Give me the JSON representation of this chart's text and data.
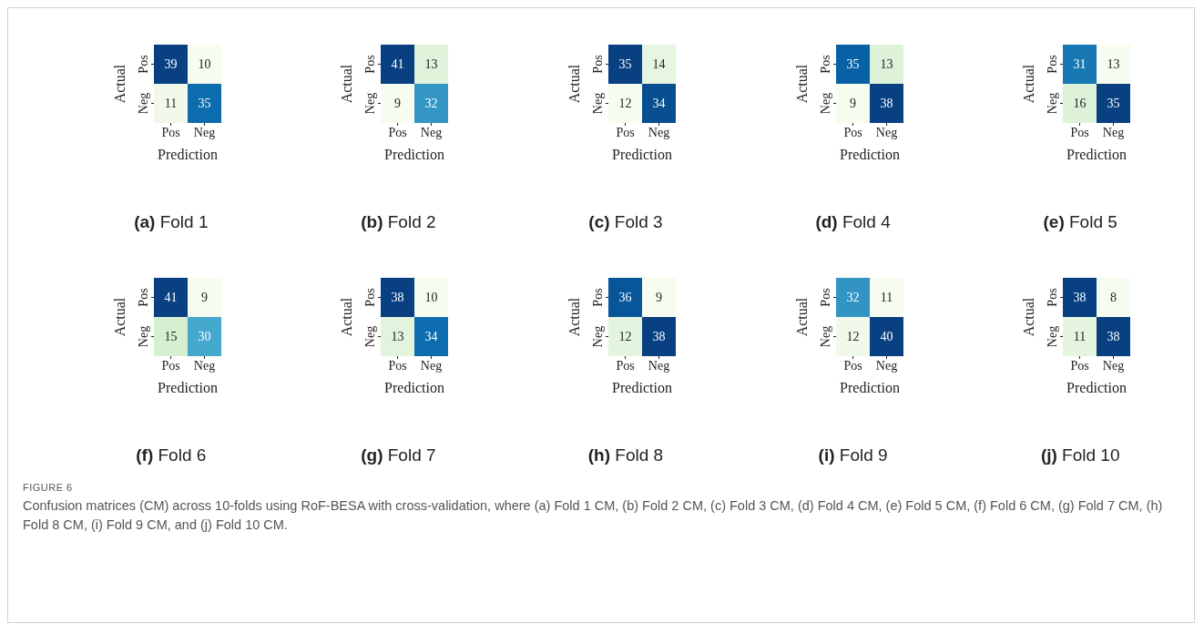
{
  "chart_data": [
    {
      "type": "heatmap",
      "title": "(a) Fold 1",
      "xlabel": "Prediction",
      "ylabel": "Actual",
      "categories": [
        "Pos",
        "Neg"
      ],
      "y_categories": [
        "Pos",
        "Neg"
      ],
      "cells": [
        [
          39,
          10
        ],
        [
          11,
          35
        ]
      ],
      "data_labels": true,
      "annotations": [
        "FIGURE 6",
        "Confusion matrices (CM) across 10-folds using RoF-BESA with cross-validation, where (a) Fold 1 CM, (b) Fold 2 CM, (c) Fold 3 CM, (d) Fold 4 CM, (e) Fold 5 CM, (f) Fold 6 CM, (g) Fold 7 CM, (h) Fold 8 CM, (i) Fold 9 CM, and (j) Fold 10 CM."
      ]
    },
    {
      "type": "heatmap",
      "title": "(b) Fold 2",
      "xlabel": "Prediction",
      "ylabel": "Actual",
      "categories": [
        "Pos",
        "Neg"
      ],
      "y_categories": [
        "Pos",
        "Neg"
      ],
      "cells": [
        [
          41,
          13
        ],
        [
          9,
          32
        ]
      ],
      "data_labels": true
    },
    {
      "type": "heatmap",
      "title": "(c) Fold 3",
      "xlabel": "Prediction",
      "ylabel": "Actual",
      "categories": [
        "Pos",
        "Neg"
      ],
      "y_categories": [
        "Pos",
        "Neg"
      ],
      "cells": [
        [
          35,
          14
        ],
        [
          12,
          34
        ]
      ],
      "data_labels": true
    },
    {
      "type": "heatmap",
      "title": "(d) Fold 4",
      "xlabel": "Prediction",
      "ylabel": "Actual",
      "categories": [
        "Pos",
        "Neg"
      ],
      "y_categories": [
        "Pos",
        "Neg"
      ],
      "cells": [
        [
          35,
          13
        ],
        [
          9,
          38
        ]
      ],
      "data_labels": true
    },
    {
      "type": "heatmap",
      "title": "(e) Fold 5",
      "xlabel": "Prediction",
      "ylabel": "Actual",
      "categories": [
        "Pos",
        "Neg"
      ],
      "y_categories": [
        "Pos",
        "Neg"
      ],
      "cells": [
        [
          31,
          13
        ],
        [
          16,
          35
        ]
      ],
      "data_labels": true
    },
    {
      "type": "heatmap",
      "title": "(f) Fold 6",
      "xlabel": "Prediction",
      "ylabel": "Actual",
      "categories": [
        "Pos",
        "Neg"
      ],
      "y_categories": [
        "Pos",
        "Neg"
      ],
      "cells": [
        [
          41,
          9
        ],
        [
          15,
          30
        ]
      ],
      "data_labels": true
    },
    {
      "type": "heatmap",
      "title": "(g) Fold 7",
      "xlabel": "Prediction",
      "ylabel": "Actual",
      "categories": [
        "Pos",
        "Neg"
      ],
      "y_categories": [
        "Pos",
        "Neg"
      ],
      "cells": [
        [
          38,
          10
        ],
        [
          13,
          34
        ]
      ],
      "data_labels": true
    },
    {
      "type": "heatmap",
      "title": "(h) Fold 8",
      "xlabel": "Prediction",
      "ylabel": "Actual",
      "categories": [
        "Pos",
        "Neg"
      ],
      "y_categories": [
        "Pos",
        "Neg"
      ],
      "cells": [
        [
          36,
          9
        ],
        [
          12,
          38
        ]
      ],
      "data_labels": true
    },
    {
      "type": "heatmap",
      "title": "(i) Fold 9",
      "xlabel": "Prediction",
      "ylabel": "Actual",
      "categories": [
        "Pos",
        "Neg"
      ],
      "y_categories": [
        "Pos",
        "Neg"
      ],
      "cells": [
        [
          32,
          11
        ],
        [
          12,
          40
        ]
      ],
      "data_labels": true
    },
    {
      "type": "heatmap",
      "title": "(j) Fold 10",
      "xlabel": "Prediction",
      "ylabel": "Actual",
      "categories": [
        "Pos",
        "Neg"
      ],
      "y_categories": [
        "Pos",
        "Neg"
      ],
      "cells": [
        [
          38,
          8
        ],
        [
          11,
          38
        ]
      ],
      "data_labels": true
    }
  ]
}
